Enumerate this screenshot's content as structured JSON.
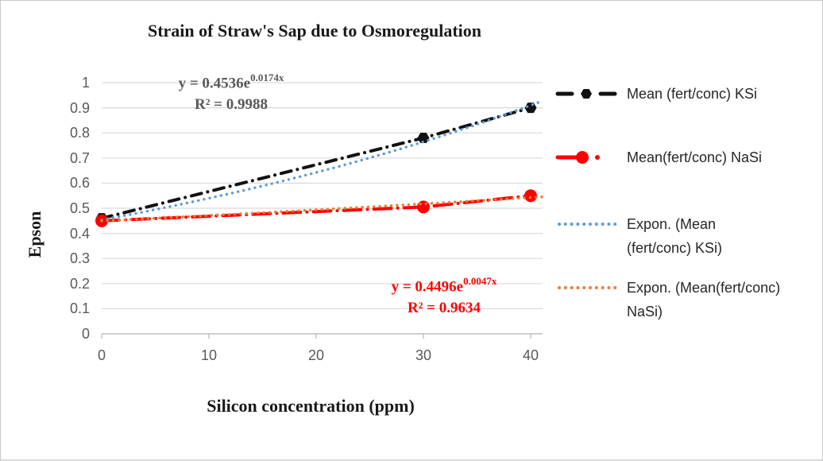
{
  "chart_data": {
    "type": "line",
    "title": "Strain of Straw's Sap due to Osmoregulation",
    "xlabel": "Silicon concentration (ppm)",
    "ylabel": "Epson",
    "x_ticks": [
      0,
      10,
      20,
      30,
      40
    ],
    "y_ticks": [
      0,
      0.1,
      0.2,
      0.3,
      0.4,
      0.5,
      0.6,
      0.7,
      0.8,
      0.9,
      1
    ],
    "xlim": [
      0,
      41.1
    ],
    "ylim": [
      0,
      1
    ],
    "grid": "horizontal",
    "legend_position": "right",
    "x": [
      0,
      30,
      40
    ],
    "series": [
      {
        "name": "Mean (fert/conc) KSi",
        "values": [
          0.46,
          0.78,
          0.9
        ],
        "color": "#111111",
        "marker": "hexagon",
        "line_style": "dash-dot"
      },
      {
        "name": "Mean(fert/conc) NaSi",
        "values": [
          0.45,
          0.505,
          0.55
        ],
        "color": "#ff0000",
        "marker": "circle",
        "line_style": "long-dash-dot"
      }
    ],
    "trendlines": [
      {
        "name": "Expon. (Mean (fert/conc) KSi)",
        "type": "exponential",
        "coef": 0.4536,
        "exp_coef": 0.0174,
        "r2": 0.9988,
        "color": "#5b9bd5",
        "style": "dotted"
      },
      {
        "name": "Expon. (Mean(fert/conc) NaSi)",
        "type": "exponential",
        "coef": 0.4496,
        "exp_coef": 0.0047,
        "r2": 0.9634,
        "color": "#ed7d31",
        "style": "dotted"
      }
    ]
  },
  "equations": {
    "ksi": {
      "base": "y = 0.4536e",
      "exponent": "0.0174x",
      "r2": "R² = 0.9988",
      "color": "#595959"
    },
    "nasi": {
      "base": "y = 0.4496e",
      "exponent": "0.0047x",
      "r2": "R² = 0.9634",
      "color": "#ff0000"
    }
  },
  "legend": {
    "items": [
      {
        "label": "Mean (fert/conc) KSi",
        "sample": "dash-hexagon-dash",
        "color": "#111111"
      },
      {
        "label": "Mean(fert/conc) NaSi",
        "sample": "dash-circle-dot",
        "color": "#ff0000"
      },
      {
        "label": "Expon. (Mean\n(fert/conc) KSi)",
        "sample": "dotted",
        "color": "#5b9bd5"
      },
      {
        "label": "Expon. (Mean(fert/conc)\nNaSi)",
        "sample": "dotted",
        "color": "#ed7d31"
      }
    ]
  },
  "colors": {
    "gridline": "#d9d9d9",
    "axis": "#bfbfbf",
    "tick_label": "#595959",
    "title_text": "#1a1a1a",
    "legend_text": "#262626",
    "background": "#ffffff"
  }
}
